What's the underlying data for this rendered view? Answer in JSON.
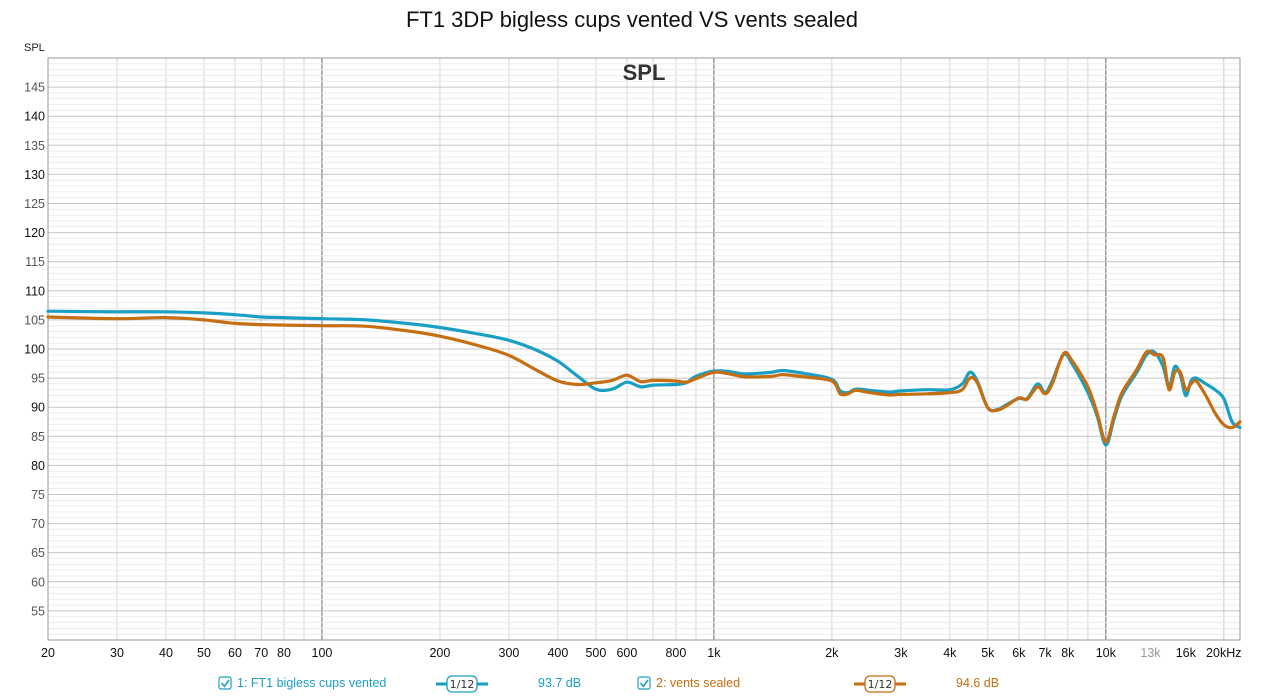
{
  "title": "FT1 3DP bigless cups vented VS vents sealed",
  "chart_data": {
    "type": "line",
    "inner_title": "SPL",
    "ylabel": "SPL",
    "xlabel": "",
    "x_scale": "log",
    "xlim": [
      20,
      22000
    ],
    "ylim": [
      50,
      150
    ],
    "grid": true,
    "y_ticks": [
      55,
      60,
      65,
      70,
      75,
      80,
      85,
      90,
      95,
      100,
      105,
      110,
      115,
      120,
      125,
      130,
      135,
      140,
      145
    ],
    "y_major_ticks": [
      80,
      90,
      100,
      110,
      120,
      130,
      140
    ],
    "x_ticks": [
      {
        "v": 20,
        "label": "20"
      },
      {
        "v": 30,
        "label": "30"
      },
      {
        "v": 40,
        "label": "40"
      },
      {
        "v": 50,
        "label": "50"
      },
      {
        "v": 60,
        "label": "60"
      },
      {
        "v": 70,
        "label": "70"
      },
      {
        "v": 80,
        "label": "80"
      },
      {
        "v": 100,
        "label": "100"
      },
      {
        "v": 200,
        "label": "200"
      },
      {
        "v": 300,
        "label": "300"
      },
      {
        "v": 400,
        "label": "400"
      },
      {
        "v": 500,
        "label": "500"
      },
      {
        "v": 600,
        "label": "600"
      },
      {
        "v": 800,
        "label": "800"
      },
      {
        "v": 1000,
        "label": "1k"
      },
      {
        "v": 2000,
        "label": "2k"
      },
      {
        "v": 3000,
        "label": "3k"
      },
      {
        "v": 4000,
        "label": "4k"
      },
      {
        "v": 5000,
        "label": "5k"
      },
      {
        "v": 6000,
        "label": "6k"
      },
      {
        "v": 7000,
        "label": "7k"
      },
      {
        "v": 8000,
        "label": "8k"
      },
      {
        "v": 10000,
        "label": "10k"
      },
      {
        "v": 13000,
        "label": "13k",
        "muted": true
      },
      {
        "v": 16000,
        "label": "16k"
      },
      {
        "v": 20000,
        "label": "20kHz"
      }
    ],
    "series": [
      {
        "name": "1: FT1 bigless cups vented",
        "color": "#1a9fc4",
        "smoothing": "1/12",
        "level": "93.7 dB",
        "points": [
          [
            20,
            106.5
          ],
          [
            30,
            106.4
          ],
          [
            40,
            106.4
          ],
          [
            50,
            106.2
          ],
          [
            60,
            105.9
          ],
          [
            70,
            105.5
          ],
          [
            80,
            105.4
          ],
          [
            100,
            105.2
          ],
          [
            130,
            105.0
          ],
          [
            170,
            104.3
          ],
          [
            200,
            103.7
          ],
          [
            250,
            102.6
          ],
          [
            300,
            101.5
          ],
          [
            350,
            99.9
          ],
          [
            400,
            97.9
          ],
          [
            450,
            95.3
          ],
          [
            500,
            93.1
          ],
          [
            550,
            93.1
          ],
          [
            600,
            94.3
          ],
          [
            650,
            93.5
          ],
          [
            700,
            93.8
          ],
          [
            800,
            93.9
          ],
          [
            850,
            94.2
          ],
          [
            900,
            95.3
          ],
          [
            1000,
            96.2
          ],
          [
            1100,
            96.1
          ],
          [
            1200,
            95.7
          ],
          [
            1400,
            96.0
          ],
          [
            1500,
            96.3
          ],
          [
            1700,
            95.8
          ],
          [
            2000,
            94.8
          ],
          [
            2100,
            92.8
          ],
          [
            2200,
            92.5
          ],
          [
            2300,
            93.1
          ],
          [
            2500,
            92.9
          ],
          [
            2800,
            92.6
          ],
          [
            3000,
            92.8
          ],
          [
            3500,
            93.0
          ],
          [
            4000,
            93.0
          ],
          [
            4300,
            94.0
          ],
          [
            4500,
            96.0
          ],
          [
            4700,
            94.5
          ],
          [
            5000,
            89.9
          ],
          [
            5300,
            89.6
          ],
          [
            5600,
            90.5
          ],
          [
            6000,
            91.5
          ],
          [
            6300,
            91.5
          ],
          [
            6700,
            94.0
          ],
          [
            7000,
            92.5
          ],
          [
            7300,
            94.5
          ],
          [
            7800,
            99.0
          ],
          [
            8200,
            97.5
          ],
          [
            9000,
            92.5
          ],
          [
            9500,
            88.5
          ],
          [
            10000,
            83.5
          ],
          [
            10500,
            88.0
          ],
          [
            11000,
            92.0
          ],
          [
            12000,
            96.0
          ],
          [
            12700,
            99.0
          ],
          [
            13300,
            99.5
          ],
          [
            14000,
            97.0
          ],
          [
            14500,
            93.5
          ],
          [
            15000,
            97.0
          ],
          [
            15500,
            95.5
          ],
          [
            16000,
            92.0
          ],
          [
            16500,
            94.5
          ],
          [
            17000,
            95.0
          ],
          [
            18000,
            94.0
          ],
          [
            19000,
            93.0
          ],
          [
            20000,
            91.5
          ],
          [
            21000,
            87.5
          ],
          [
            22000,
            86.5
          ]
        ]
      },
      {
        "name": "2: vents sealed",
        "color": "#c56e12",
        "smoothing": "1/12",
        "level": "94.6 dB",
        "points": [
          [
            20,
            105.5
          ],
          [
            30,
            105.2
          ],
          [
            40,
            105.4
          ],
          [
            50,
            105.0
          ],
          [
            60,
            104.4
          ],
          [
            70,
            104.2
          ],
          [
            80,
            104.1
          ],
          [
            100,
            104.0
          ],
          [
            130,
            103.9
          ],
          [
            170,
            103.0
          ],
          [
            200,
            102.2
          ],
          [
            250,
            100.6
          ],
          [
            300,
            98.9
          ],
          [
            350,
            96.5
          ],
          [
            400,
            94.5
          ],
          [
            450,
            93.9
          ],
          [
            500,
            94.2
          ],
          [
            550,
            94.6
          ],
          [
            600,
            95.5
          ],
          [
            650,
            94.4
          ],
          [
            700,
            94.6
          ],
          [
            800,
            94.5
          ],
          [
            850,
            94.3
          ],
          [
            900,
            94.9
          ],
          [
            1000,
            96.0
          ],
          [
            1100,
            95.7
          ],
          [
            1200,
            95.2
          ],
          [
            1400,
            95.3
          ],
          [
            1500,
            95.6
          ],
          [
            1700,
            95.2
          ],
          [
            2000,
            94.5
          ],
          [
            2100,
            92.3
          ],
          [
            2200,
            92.3
          ],
          [
            2300,
            92.9
          ],
          [
            2500,
            92.5
          ],
          [
            2800,
            92.1
          ],
          [
            3000,
            92.2
          ],
          [
            3500,
            92.3
          ],
          [
            4000,
            92.5
          ],
          [
            4300,
            93.0
          ],
          [
            4500,
            95.0
          ],
          [
            4700,
            94.2
          ],
          [
            5000,
            89.9
          ],
          [
            5300,
            89.5
          ],
          [
            5600,
            90.3
          ],
          [
            6000,
            91.6
          ],
          [
            6300,
            91.4
          ],
          [
            6700,
            93.5
          ],
          [
            7000,
            92.3
          ],
          [
            7300,
            94.0
          ],
          [
            7800,
            99.2
          ],
          [
            8200,
            98.0
          ],
          [
            9000,
            93.5
          ],
          [
            9500,
            89.0
          ],
          [
            10000,
            84.0
          ],
          [
            10500,
            88.5
          ],
          [
            11000,
            92.5
          ],
          [
            12000,
            96.5
          ],
          [
            12700,
            99.5
          ],
          [
            13300,
            99.0
          ],
          [
            14000,
            98.5
          ],
          [
            14500,
            93.0
          ],
          [
            15000,
            96.0
          ],
          [
            15500,
            96.0
          ],
          [
            16000,
            93.0
          ],
          [
            16500,
            94.0
          ],
          [
            17000,
            94.5
          ],
          [
            18000,
            92.0
          ],
          [
            19000,
            89.0
          ],
          [
            20000,
            87.0
          ],
          [
            21000,
            86.5
          ],
          [
            22000,
            87.5
          ]
        ]
      }
    ]
  }
}
